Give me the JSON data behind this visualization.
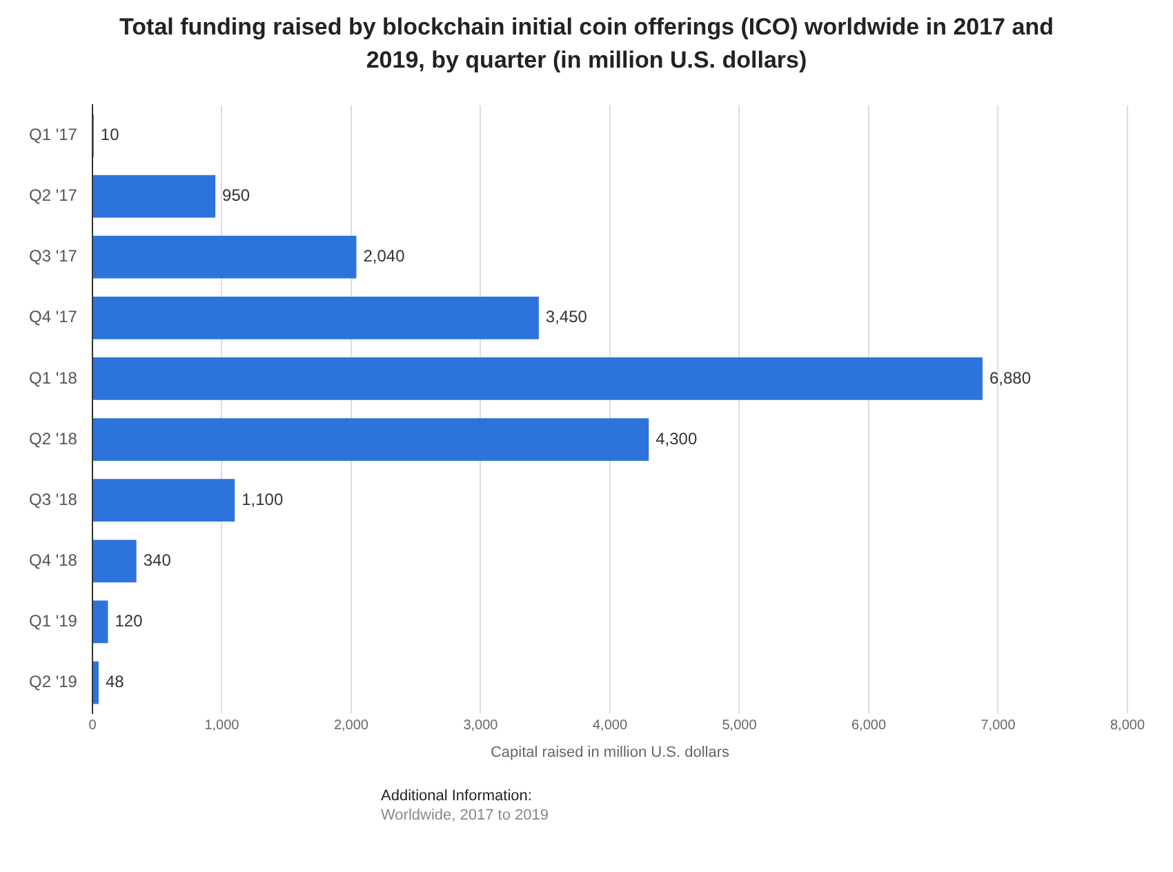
{
  "chart_data": {
    "type": "bar",
    "orientation": "horizontal",
    "title": "Total funding raised by blockchain initial coin offerings (ICO) worldwide in 2017 and 2019, by quarter (in million U.S. dollars)",
    "xlabel": "Capital raised in million U.S. dollars",
    "categories": [
      "Q1 '17",
      "Q2 '17",
      "Q3 '17",
      "Q4 '17",
      "Q1 '18",
      "Q2 '18",
      "Q3 '18",
      "Q4 '18",
      "Q1 '19",
      "Q2 '19"
    ],
    "values": [
      10,
      950,
      2040,
      3450,
      6880,
      4300,
      1100,
      340,
      120,
      48
    ],
    "value_labels": [
      "10",
      "950",
      "2,040",
      "3,450",
      "6,880",
      "4,300",
      "1,100",
      "340",
      "120",
      "48"
    ],
    "color": "#2c74db",
    "xlim": [
      0,
      8000
    ],
    "xticks": [
      0,
      {
        "value": 1000,
        "label": "1,000"
      },
      {
        "value": 2000,
        "label": "2,000"
      },
      {
        "value": 3000,
        "label": "3,000"
      },
      {
        "value": 4000,
        "label": "4,000"
      },
      {
        "value": 5000,
        "label": "5,000"
      },
      {
        "value": 6000,
        "label": "6,000"
      },
      {
        "value": 7000,
        "label": "7,000"
      },
      {
        "value": 8000,
        "label": "8,000"
      }
    ],
    "grid": "x",
    "legend": false,
    "annotations": [
      "Additional Information:",
      "Worldwide, 2017 to 2019"
    ]
  }
}
